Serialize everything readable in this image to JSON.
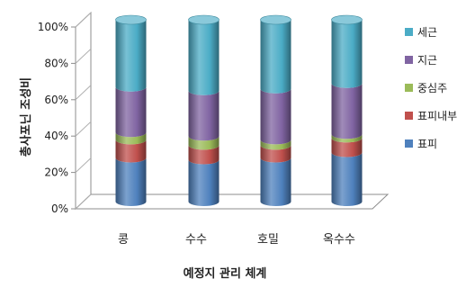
{
  "chart_data": {
    "type": "bar",
    "stacked": true,
    "percent": true,
    "style": "3d-cylinder",
    "xlabel": "예정지 관리 체계",
    "ylabel": "총사포닌 조성비",
    "categories": [
      "콩",
      "수수",
      "호밀",
      "옥수수"
    ],
    "yticks": [
      "0%",
      "20%",
      "40%",
      "60%",
      "80%",
      "100%"
    ],
    "ylim": [
      0,
      100
    ],
    "grid": false,
    "legend_position": "right",
    "series": [
      {
        "name": "표피",
        "color": "#4f81bd",
        "values": [
          24,
          23,
          24,
          27
        ]
      },
      {
        "name": "표피내부",
        "color": "#c0504d",
        "values": [
          10,
          8,
          7,
          8
        ]
      },
      {
        "name": "중심주",
        "color": "#9bbb59",
        "values": [
          4,
          5,
          3,
          2
        ]
      },
      {
        "name": "지근",
        "color": "#8064a2",
        "values": [
          25,
          25,
          28,
          28
        ]
      },
      {
        "name": "세근",
        "color": "#4bacc6",
        "values": [
          37,
          39,
          38,
          35
        ]
      }
    ]
  }
}
